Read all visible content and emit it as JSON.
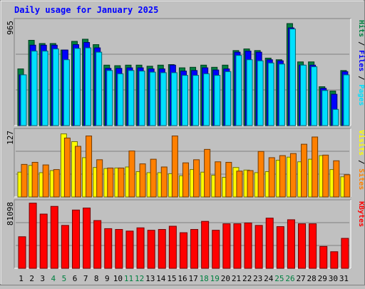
{
  "chart_data": [
    {
      "type": "bar",
      "title": "Daily usage for January 2025",
      "categories": [
        "1",
        "2",
        "3",
        "4",
        "5",
        "6",
        "7",
        "8",
        "9",
        "10",
        "11",
        "12",
        "13",
        "14",
        "15",
        "16",
        "17",
        "18",
        "19",
        "20",
        "21",
        "22",
        "23",
        "24",
        "25",
        "26",
        "27",
        "28",
        "29",
        "30",
        "31"
      ],
      "weekend_days": [
        "4",
        "5",
        "11",
        "12",
        "18",
        "19",
        "25",
        "26"
      ],
      "y_tick_label": "965",
      "ylim": [
        0,
        965
      ],
      "grid": true,
      "side_label": [
        "Hits",
        "Files",
        "Pages"
      ],
      "series": [
        {
          "name": "Hits",
          "color": "#008040",
          "values": [
            525,
            790,
            760,
            760,
            700,
            780,
            800,
            750,
            560,
            555,
            560,
            560,
            550,
            560,
            565,
            535,
            540,
            560,
            540,
            560,
            695,
            710,
            695,
            625,
            610,
            945,
            590,
            590,
            360,
            320,
            510
          ]
        },
        {
          "name": "Files",
          "color": "#0000ff",
          "values": [
            470,
            745,
            745,
            745,
            700,
            750,
            770,
            720,
            530,
            530,
            535,
            535,
            525,
            525,
            560,
            505,
            510,
            535,
            515,
            525,
            680,
            690,
            680,
            610,
            600,
            905,
            560,
            560,
            345,
            290,
            500
          ]
        },
        {
          "name": "Pages",
          "color": "#00e0ff",
          "values": [
            470,
            690,
            690,
            710,
            610,
            715,
            720,
            680,
            510,
            480,
            510,
            505,
            495,
            490,
            490,
            465,
            465,
            480,
            465,
            500,
            650,
            610,
            600,
            580,
            570,
            895,
            560,
            545,
            325,
            150,
            470
          ]
        }
      ]
    },
    {
      "type": "bar",
      "categories": [
        "1",
        "2",
        "3",
        "4",
        "5",
        "6",
        "7",
        "8",
        "9",
        "10",
        "11",
        "12",
        "13",
        "14",
        "15",
        "16",
        "17",
        "18",
        "19",
        "20",
        "21",
        "22",
        "23",
        "24",
        "25",
        "26",
        "27",
        "28",
        "29",
        "30",
        "31"
      ],
      "y_tick_label": "127",
      "ylim": [
        0,
        127
      ],
      "grid": true,
      "side_label": [
        "Visits",
        "Sites"
      ],
      "series": [
        {
          "name": "Visits",
          "color": "#ffff00",
          "values": [
            48,
            61,
            47,
            51,
            122,
            107,
            76,
            57,
            55,
            56,
            58,
            49,
            47,
            47,
            45,
            41,
            53,
            48,
            42,
            38,
            57,
            52,
            47,
            49,
            71,
            77,
            68,
            73,
            80,
            53,
            39
          ]
        },
        {
          "name": "Sites",
          "color": "#ff8000",
          "values": [
            63,
            67,
            62,
            53,
            114,
            98,
            118,
            72,
            56,
            56,
            89,
            64,
            73,
            58,
            118,
            66,
            72,
            92,
            68,
            67,
            50,
            51,
            88,
            76,
            80,
            84,
            102,
            116,
            81,
            70,
            43
          ]
        }
      ]
    },
    {
      "type": "bar",
      "categories": [
        "1",
        "2",
        "3",
        "4",
        "5",
        "6",
        "7",
        "8",
        "9",
        "10",
        "11",
        "12",
        "13",
        "14",
        "15",
        "16",
        "17",
        "18",
        "19",
        "20",
        "21",
        "22",
        "23",
        "24",
        "25",
        "26",
        "27",
        "28",
        "29",
        "30",
        "31"
      ],
      "y_tick_label": "81098",
      "ylim": [
        0,
        81098
      ],
      "grid": true,
      "side_label": [
        "KBytes"
      ],
      "series": [
        {
          "name": "KBytes",
          "color": "#ff0000",
          "values": [
            39000,
            80500,
            67000,
            76500,
            53000,
            72000,
            74500,
            59000,
            49000,
            48000,
            46000,
            50000,
            47000,
            48000,
            52000,
            44000,
            48000,
            58000,
            47000,
            55000,
            55000,
            56000,
            53000,
            62000,
            51500,
            60000,
            55000,
            55000,
            27000,
            20500,
            37000
          ]
        }
      ]
    }
  ]
}
